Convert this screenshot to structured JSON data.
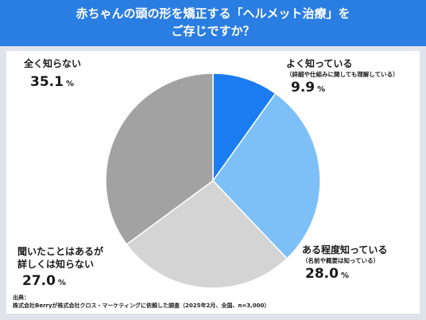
{
  "header": {
    "line1": "赤ちゃんの頭の形を矯正する「ヘルメット治療」を",
    "line2": "ご存じですか？"
  },
  "chart_data": {
    "type": "pie",
    "title": "赤ちゃんの頭の形を矯正する「ヘルメット治療」をご存じですか？",
    "unit": "%",
    "slices": [
      {
        "label": "よく知っている",
        "note": "（詳細や仕組みに関しても理解している）",
        "value": 9.9,
        "value_text": "9.9",
        "color": "#1a7cf0"
      },
      {
        "label": "ある程度知っている",
        "note": "（名前や概要は知っている）",
        "value": 28.0,
        "value_text": "28.0",
        "color": "#7cc0f7"
      },
      {
        "label": "聞いたことはあるが詳しくは知らない",
        "label_lines": [
          "聞いたことはあるが",
          "詳しくは知らない"
        ],
        "value": 27.0,
        "value_text": "27.0",
        "color": "#d4d4d4"
      },
      {
        "label": "全く知らない",
        "value": 35.1,
        "value_text": "35.1",
        "color": "#a2a2a2"
      }
    ]
  },
  "source": {
    "line1": "出典：",
    "line2": "株式会社Berryが株式会社クロス・マーケティングに依頼した調査（2025年2月、全国、n=3,000）"
  }
}
